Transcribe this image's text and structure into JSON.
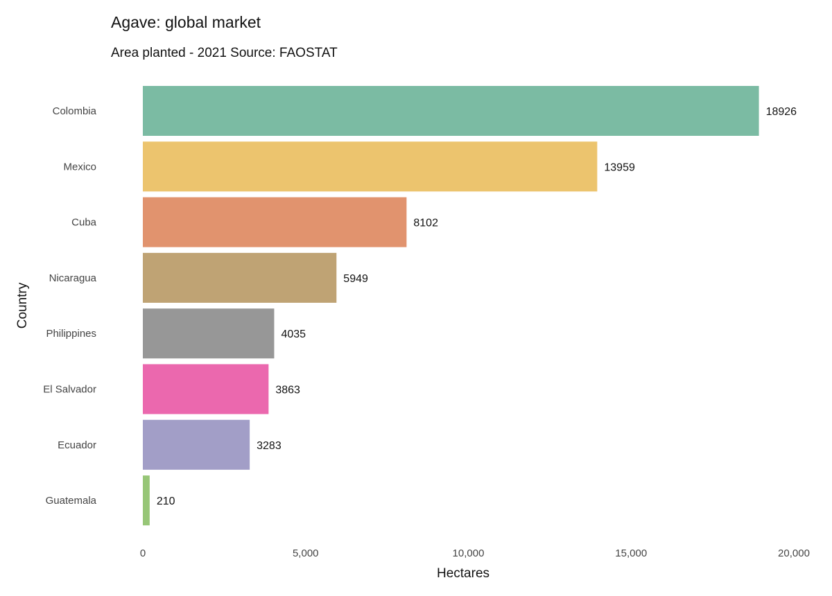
{
  "chart_data": {
    "type": "bar",
    "orientation": "horizontal",
    "title": "Agave: global market",
    "subtitle": "Area planted - 2021 Source: FAOSTAT",
    "xlabel": "Hectares",
    "ylabel": "Country",
    "categories": [
      "Colombia",
      "Mexico",
      "Cuba",
      "Nicaragua",
      "Philippines",
      "El Salvador",
      "Ecuador",
      "Guatemala"
    ],
    "values": [
      18926,
      13959,
      8102,
      5949,
      4035,
      3863,
      3283,
      210
    ],
    "value_labels": [
      "18926",
      "13959",
      "8102",
      "5949",
      "4035",
      "3863",
      "3283",
      "210"
    ],
    "colors": [
      "#7bbba3",
      "#ecc46e",
      "#e1936e",
      "#bfa374",
      "#979797",
      "#eb68ae",
      "#a29ec7",
      "#97c677"
    ],
    "xlim": [
      0,
      20000
    ],
    "xticks": [
      0,
      5000,
      10000,
      15000,
      20000
    ],
    "xtick_labels": [
      "0",
      "5,000",
      "10,000",
      "15,000",
      "20,000"
    ],
    "grid": false,
    "legend": "none"
  }
}
